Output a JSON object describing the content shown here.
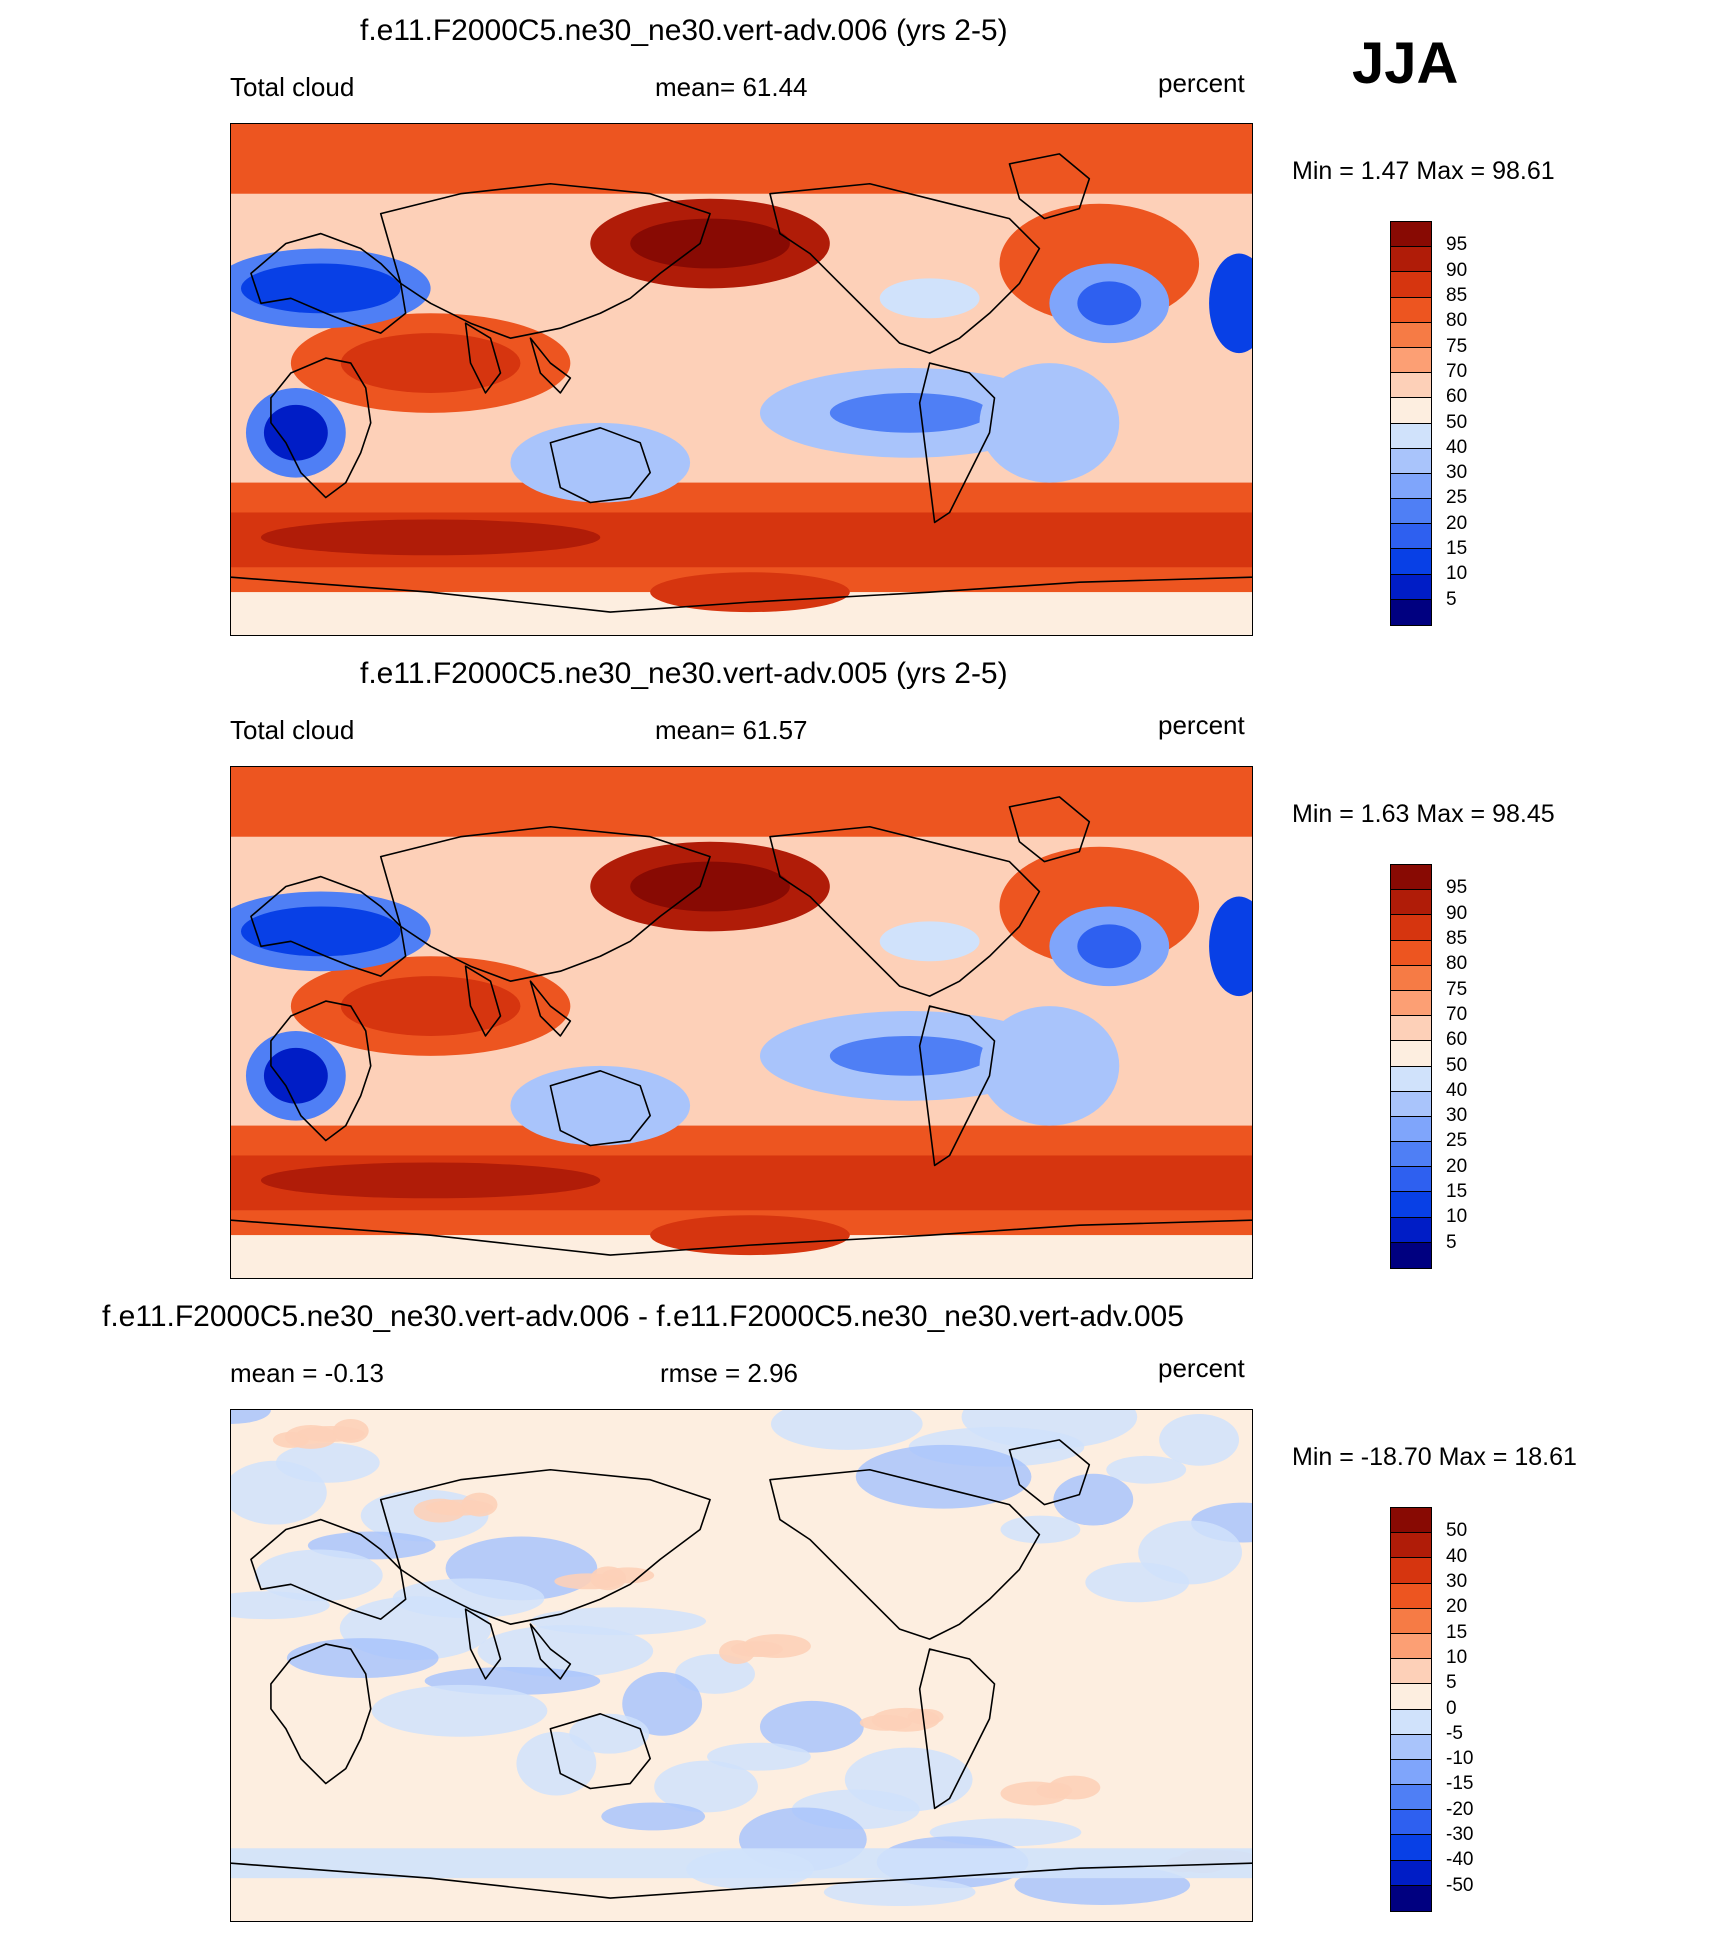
{
  "season": "JJA",
  "palettes": {
    "field": [
      "#000080",
      "#001dc6",
      "#0840e6",
      "#2e60f0",
      "#4f7ff5",
      "#7fa5fb",
      "#a9c4fb",
      "#d0e2fb",
      "#fdeee0",
      "#fdd0b8",
      "#fc9f74",
      "#f67b45",
      "#ed5520",
      "#d6350f",
      "#b01c08",
      "#880a03"
    ],
    "diff": [
      "#000080",
      "#001dc6",
      "#0840e6",
      "#2e60f0",
      "#4f7ff5",
      "#7fa5fb",
      "#a9c4fb",
      "#d0e2fb",
      "#fdeee0",
      "#fdd0b8",
      "#fc9f74",
      "#f67b45",
      "#ed5520",
      "#d6350f",
      "#b01c08",
      "#880a03"
    ]
  },
  "panels": [
    {
      "title": "f.e11.F2000C5.ne30_ne30.vert-adv.006 (yrs 2-5)",
      "left_label": "Total cloud",
      "center_label": "mean=  61.44",
      "right_label": "percent",
      "minmax": "Min =   1.47 Max =  98.61",
      "levels": [
        "95",
        "90",
        "85",
        "80",
        "75",
        "70",
        "60",
        "50",
        "40",
        "30",
        "25",
        "20",
        "15",
        "10",
        "5"
      ],
      "variant": "field"
    },
    {
      "title": "f.e11.F2000C5.ne30_ne30.vert-adv.005 (yrs 2-5)",
      "left_label": "Total cloud",
      "center_label": "mean=  61.57",
      "right_label": "percent",
      "minmax": "Min =   1.63 Max =  98.45",
      "levels": [
        "95",
        "90",
        "85",
        "80",
        "75",
        "70",
        "60",
        "50",
        "40",
        "30",
        "25",
        "20",
        "15",
        "10",
        "5"
      ],
      "variant": "field"
    },
    {
      "title": "f.e11.F2000C5.ne30_ne30.vert-adv.006 - f.e11.F2000C5.ne30_ne30.vert-adv.005",
      "left_label": "mean =  -0.13",
      "center_label": "rmse =   2.96",
      "right_label": "percent",
      "minmax": "Min = -18.70 Max =  18.61",
      "levels": [
        "50",
        "40",
        "30",
        "20",
        "15",
        "10",
        "5",
        "0",
        "-5",
        "-10",
        "-15",
        "-20",
        "-30",
        "-40",
        "-50"
      ],
      "variant": "diff"
    }
  ]
}
